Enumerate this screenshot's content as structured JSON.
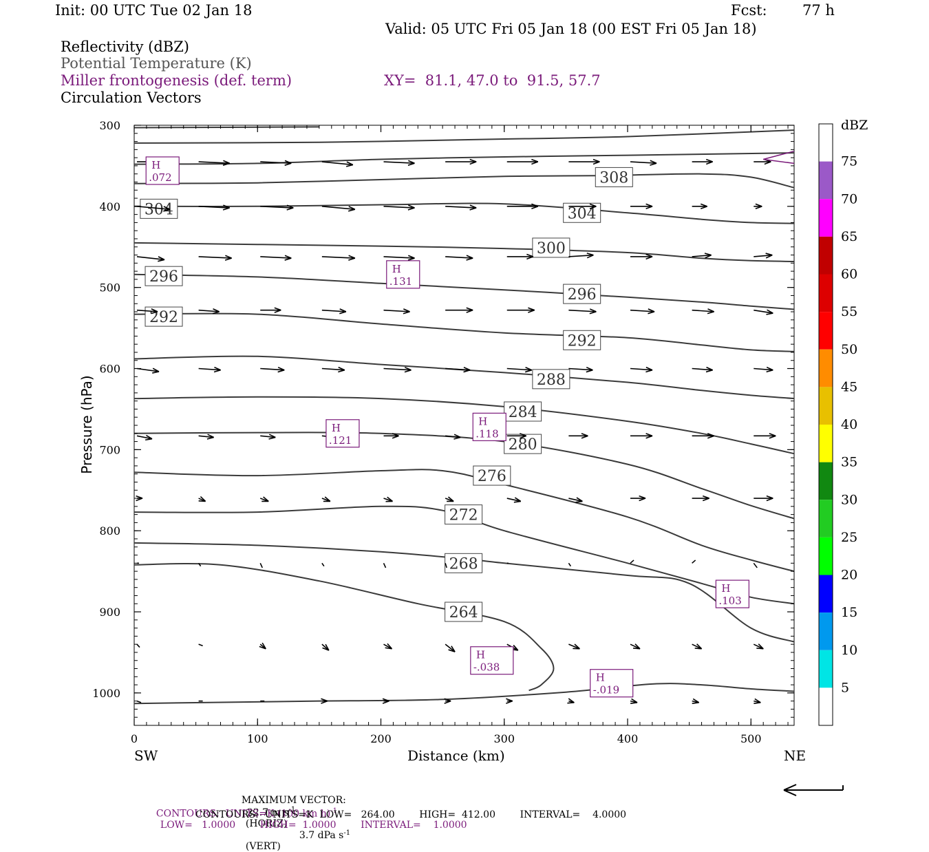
{
  "header": {
    "init": "Init: 00 UTC Tue 02 Jan 18",
    "fcst_label": "Fcst:",
    "fcst_value": "77 h",
    "valid": "Valid: 05 UTC Fri 05 Jan 18 (00 EST Fri 05 Jan 18)"
  },
  "fields": {
    "reflectivity": "Reflectivity (dBZ)",
    "theta": "Potential Temperature (K)",
    "frontogenesis": "Miller frontogenesis (def. term)",
    "xy": "XY=  81.1, 47.0 to  91.5, 57.7",
    "vectors": "Circulation Vectors"
  },
  "colors": {
    "purple": "#7a1a7a",
    "contour": "#3a3a3a"
  },
  "chart_data": {
    "type": "line",
    "xlabel": "Distance (km)",
    "ylabel": "Pressure (hPa)",
    "xlim": [
      0,
      535
    ],
    "ylim": [
      1040,
      300
    ],
    "x_ticks": [
      "0",
      "100",
      "200",
      "300",
      "400",
      "500"
    ],
    "y_ticks": [
      "300",
      "400",
      "500",
      "600",
      "700",
      "800",
      "900",
      "1000"
    ],
    "x_tick_values": [
      0,
      100,
      200,
      300,
      400,
      500
    ],
    "y_tick_values": [
      300,
      400,
      500,
      600,
      700,
      800,
      900,
      1000
    ],
    "left_end_label": "SW",
    "right_end_label": "NE",
    "theta_contours": [
      {
        "level": "308",
        "label_at": [
          389,
          364
        ],
        "points": [
          [
            0,
            372
          ],
          [
            100,
            371
          ],
          [
            200,
            367
          ],
          [
            300,
            363
          ],
          [
            380,
            362
          ],
          [
            460,
            360
          ],
          [
            500,
            364
          ],
          [
            535,
            377
          ]
        ]
      },
      {
        "level": "304",
        "label_at": [
          363,
          408
        ],
        "points": [
          [
            0,
            400
          ],
          [
            100,
            400
          ],
          [
            200,
            398
          ],
          [
            300,
            397
          ],
          [
            400,
            408
          ],
          [
            460,
            416
          ],
          [
            500,
            420
          ],
          [
            535,
            421
          ]
        ]
      },
      {
        "level": "300",
        "label_at": [
          338,
          451
        ],
        "points": [
          [
            0,
            445
          ],
          [
            100,
            447
          ],
          [
            200,
            449
          ],
          [
            300,
            452
          ],
          [
            400,
            457
          ],
          [
            460,
            464
          ],
          [
            500,
            467
          ],
          [
            535,
            468
          ]
        ]
      },
      {
        "level": "296",
        "label_at": [
          363,
          508
        ],
        "points": [
          [
            0,
            484
          ],
          [
            100,
            487
          ],
          [
            200,
            495
          ],
          [
            300,
            503
          ],
          [
            400,
            512
          ],
          [
            460,
            518
          ],
          [
            500,
            523
          ],
          [
            535,
            527
          ]
        ]
      },
      {
        "level": "292",
        "label_at": [
          363,
          565
        ],
        "points": [
          [
            0,
            533
          ],
          [
            100,
            533
          ],
          [
            200,
            545
          ],
          [
            300,
            556
          ],
          [
            400,
            562
          ],
          [
            460,
            571
          ],
          [
            500,
            577
          ],
          [
            535,
            579
          ]
        ]
      },
      {
        "level": "288",
        "label_at": [
          338,
          613
        ],
        "points": [
          [
            0,
            588
          ],
          [
            100,
            585
          ],
          [
            200,
            595
          ],
          [
            300,
            605
          ],
          [
            400,
            617
          ],
          [
            460,
            627
          ],
          [
            500,
            633
          ],
          [
            535,
            637
          ]
        ]
      },
      {
        "level": "284",
        "label_at": [
          315,
          653
        ],
        "points": [
          [
            0,
            637
          ],
          [
            100,
            635
          ],
          [
            200,
            637
          ],
          [
            300,
            647
          ],
          [
            400,
            665
          ],
          [
            460,
            680
          ],
          [
            500,
            693
          ],
          [
            535,
            705
          ]
        ]
      },
      {
        "level": "280",
        "label_at": [
          315,
          693
        ],
        "points": [
          [
            0,
            680
          ],
          [
            100,
            679
          ],
          [
            200,
            680
          ],
          [
            300,
            690
          ],
          [
            400,
            718
          ],
          [
            460,
            748
          ],
          [
            500,
            769
          ],
          [
            535,
            785
          ]
        ]
      },
      {
        "level": "276",
        "label_at": [
          290,
          732
        ],
        "points": [
          [
            0,
            728
          ],
          [
            100,
            732
          ],
          [
            200,
            726
          ],
          [
            250,
            726
          ],
          [
            300,
            743
          ],
          [
            400,
            783
          ],
          [
            460,
            818
          ],
          [
            500,
            836
          ],
          [
            535,
            850
          ]
        ]
      },
      {
        "level": "272",
        "label_at": [
          267,
          780
        ],
        "points": [
          [
            0,
            777
          ],
          [
            100,
            777
          ],
          [
            200,
            770
          ],
          [
            250,
            775
          ],
          [
            300,
            800
          ],
          [
            400,
            840
          ],
          [
            460,
            865
          ],
          [
            500,
            882
          ],
          [
            535,
            890
          ]
        ]
      },
      {
        "level": "268",
        "label_at": [
          267,
          840
        ],
        "points": [
          [
            0,
            815
          ],
          [
            100,
            818
          ],
          [
            200,
            826
          ],
          [
            270,
            835
          ],
          [
            300,
            840
          ],
          [
            400,
            855
          ],
          [
            450,
            865
          ],
          [
            500,
            920
          ],
          [
            535,
            937
          ]
        ]
      }
    ],
    "contour_264": {
      "level": "264",
      "label_at": [
        267,
        900
      ],
      "points": [
        [
          0,
          842
        ],
        [
          70,
          842
        ],
        [
          150,
          862
        ],
        [
          230,
          890
        ],
        [
          300,
          912
        ],
        [
          330,
          945
        ],
        [
          340,
          970
        ],
        [
          330,
          990
        ],
        [
          320,
          997
        ]
      ]
    },
    "contour_sfc": {
      "points": [
        [
          0,
          1013
        ],
        [
          50,
          1012
        ],
        [
          150,
          1010
        ],
        [
          250,
          1008
        ],
        [
          350,
          999
        ],
        [
          420,
          989
        ],
        [
          460,
          990
        ],
        [
          500,
          995
        ],
        [
          535,
          998
        ]
      ]
    },
    "contour_top": {
      "points": [
        [
          0,
          303
        ],
        [
          150,
          302
        ]
      ]
    },
    "contour_upper": [
      {
        "points": [
          [
            0,
            322
          ],
          [
            150,
            321
          ],
          [
            300,
            317
          ],
          [
            400,
            314
          ],
          [
            535,
            306
          ]
        ]
      },
      {
        "points": [
          [
            0,
            348
          ],
          [
            100,
            347
          ],
          [
            200,
            342
          ],
          [
            300,
            339
          ],
          [
            400,
            337
          ],
          [
            535,
            334
          ]
        ]
      }
    ],
    "frontogenesis_maxima": [
      {
        "label": "H",
        "value": ".072",
        "x": 23,
        "p": 356
      },
      {
        "label": "H",
        "value": ".131",
        "x": 218,
        "p": 484
      },
      {
        "label": "H",
        "value": ".121",
        "x": 169,
        "p": 680
      },
      {
        "label": "H",
        "value": ".118",
        "x": 288,
        "p": 672
      },
      {
        "label": "H",
        "value": "-.038",
        "x": 290,
        "p": 960
      },
      {
        "label": "H",
        "value": "-.019",
        "x": 387,
        "p": 988
      },
      {
        "label": "H",
        "value": ".103",
        "x": 485,
        "p": 878
      }
    ],
    "circulation_vectors": {
      "rows": [
        {
          "p": 345,
          "xs": [
            0,
            50,
            100,
            150,
            200,
            250,
            300,
            350,
            400,
            450,
            500
          ],
          "u": [
            40,
            45,
            45,
            45,
            45,
            45,
            45,
            45,
            38,
            30,
            25
          ],
          "w": [
            0,
            -1,
            -1,
            -2,
            -1,
            0,
            0,
            0,
            -1,
            0,
            0
          ]
        },
        {
          "p": 400,
          "xs": [
            0,
            50,
            100,
            150,
            200,
            250,
            300,
            350,
            400,
            450,
            500
          ],
          "u": [
            48,
            45,
            48,
            48,
            45,
            45,
            45,
            40,
            32,
            22,
            12
          ],
          "w": [
            -2,
            -1,
            -1,
            -2,
            -1,
            -1,
            0,
            0,
            0,
            0,
            0
          ]
        },
        {
          "p": 462,
          "xs": [
            0,
            50,
            100,
            150,
            200,
            250,
            300,
            350,
            400,
            450,
            500
          ],
          "u": [
            40,
            48,
            45,
            48,
            45,
            40,
            38,
            36,
            32,
            28,
            27
          ],
          "w": [
            -2,
            -1,
            -1,
            -1,
            -1,
            -1,
            0,
            1,
            0,
            1,
            1
          ]
        },
        {
          "p": 528,
          "xs": [
            0,
            50,
            100,
            150,
            200,
            250,
            300,
            350,
            400,
            450,
            500
          ],
          "u": [
            30,
            30,
            30,
            35,
            38,
            40,
            40,
            40,
            35,
            32,
            28
          ],
          "w": [
            -1,
            -1,
            0,
            -1,
            -1,
            0,
            0,
            -1,
            -1,
            -1,
            -2
          ]
        },
        {
          "p": 600,
          "xs": [
            0,
            50,
            100,
            150,
            200,
            250,
            300,
            350,
            400,
            450,
            500
          ],
          "u": [
            32,
            32,
            35,
            33,
            40,
            36,
            36,
            35,
            32,
            30,
            28
          ],
          "w": [
            -2,
            -1,
            -1,
            -1,
            -1,
            -1,
            -1,
            -1,
            -1,
            -1,
            -1
          ]
        },
        {
          "p": 683,
          "xs": [
            0,
            50,
            100,
            150,
            200,
            250,
            300,
            350,
            400,
            450,
            500
          ],
          "u": [
            22,
            22,
            22,
            22,
            22,
            22,
            28,
            28,
            32,
            32,
            32
          ],
          "w": [
            -2,
            -1,
            -1,
            -1,
            0,
            -1,
            0,
            0,
            0,
            0,
            0
          ]
        },
        {
          "p": 760,
          "xs": [
            0,
            50,
            100,
            150,
            200,
            250,
            300,
            350,
            400,
            450,
            500
          ],
          "u": [
            8,
            10,
            12,
            12,
            13,
            12,
            20,
            20,
            22,
            25,
            28
          ],
          "w": [
            0,
            -2,
            -2,
            -2,
            -2,
            -2,
            -2,
            -2,
            0,
            0,
            0
          ]
        },
        {
          "p": 840,
          "xs": [
            0,
            50,
            100,
            150,
            200,
            250,
            300,
            350,
            400,
            450,
            500
          ],
          "u": [
            3,
            3,
            3,
            3,
            3,
            2,
            2,
            3,
            5,
            5,
            5
          ],
          "w": [
            0,
            -2,
            -3,
            -2,
            -3,
            -3,
            0,
            -2,
            2,
            2,
            -3
          ]
        },
        {
          "p": 940,
          "xs": [
            0,
            50,
            100,
            150,
            200,
            250,
            300,
            350,
            400,
            450,
            500
          ],
          "u": [
            4,
            6,
            8,
            10,
            12,
            14,
            16,
            16,
            14,
            14,
            14
          ],
          "w": [
            -2,
            -1,
            -3,
            -4,
            -3,
            -5,
            -4,
            -3,
            -3,
            -3,
            -3
          ]
        },
        {
          "p": 1010,
          "xs": [
            0,
            50,
            100,
            150,
            200,
            250,
            300,
            350,
            400,
            450,
            500
          ],
          "u": [
            6,
            6,
            6,
            8,
            8,
            8,
            8,
            8,
            10,
            10,
            10
          ],
          "w": [
            -1,
            0,
            0,
            0,
            0,
            0,
            0,
            -1,
            -1,
            -1,
            -1
          ]
        }
      ]
    },
    "colorbar": {
      "title": "dBZ",
      "labels": [
        "75",
        "70",
        "65",
        "60",
        "55",
        "50",
        "45",
        "40",
        "35",
        "30",
        "25",
        "20",
        "15",
        "10",
        "5"
      ],
      "colors": [
        "#ffffff",
        "#9b59c8",
        "#ff00ff",
        "#c00000",
        "#dd0000",
        "#ff0000",
        "#ff8c00",
        "#e8c000",
        "#ffff00",
        "#118811",
        "#22cc22",
        "#00ff00",
        "#0000ff",
        "#0099ee",
        "#00e5e5",
        "#ffffff"
      ]
    }
  },
  "footer": {
    "max_vector_label": "MAXIMUM VECTOR:",
    "max_vector_horiz": "22.7 m s",
    "max_vector_horiz_exp": "-1",
    "max_vector_horiz_tag": "(HORIZ)",
    "max_vector_vert": "3.7 dPa s",
    "max_vector_vert_exp": "-1",
    "max_vector_vert_tag": "(VERT)",
    "contours1_a": "CONTOURS:  UNITS=K (100 km h)",
    "contours1_exp": "-1",
    "contours1_b": "LOW=   1.0000        HIGH=  1.0000        INTERVAL=    1.0000",
    "contours2": "CONTOURS:  UNITS=K  LOW=   264.00        HIGH=  412.00        INTERVAL=    4.0000"
  }
}
